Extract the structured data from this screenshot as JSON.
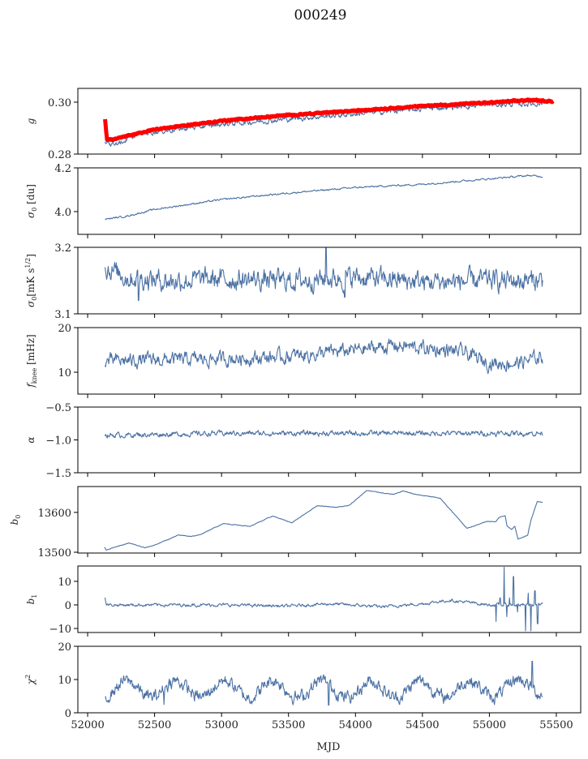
{
  "chart_data": {
    "type": "line",
    "title": "000249",
    "xlabel": "MJD",
    "xlim": [
      51927,
      55682
    ],
    "xticks": [
      52000,
      52500,
      53000,
      53500,
      54000,
      54500,
      55000,
      55500
    ],
    "xtick_labels": [
      "52000",
      "52500",
      "53000",
      "53500",
      "54000",
      "54500",
      "55000",
      "55500"
    ],
    "series_color": "#4c72a4",
    "model_color": "#ff0000",
    "grid": false,
    "panels": [
      {
        "id": "g",
        "ylabel": {
          "main": "g",
          "sub": "",
          "sup": "",
          "tail": ""
        },
        "ylim": [
          0.28,
          0.3053
        ],
        "yticks": [
          0.28,
          0.3
        ],
        "ytick_labels": [
          "0.28",
          "0.30"
        ],
        "series": [
          {
            "name": "gain",
            "x": [
              52130,
              52200,
              52400,
              53000,
              53500,
              54000,
              54500,
              55000,
              55400
            ],
            "y": [
              0.284,
              0.2835,
              0.288,
              0.2915,
              0.2935,
              0.2955,
              0.2975,
              0.299,
              0.2995
            ],
            "noise": 0.0008,
            "x_end": 55400
          },
          {
            "name": "gain model",
            "model": true,
            "x": [
              52130,
              52145,
              52200,
              52500,
              53000,
              53500,
              54000,
              54500,
              55000,
              55300,
              55480
            ],
            "y": [
              0.2935,
              0.2855,
              0.2857,
              0.2895,
              0.2928,
              0.295,
              0.2967,
              0.2985,
              0.2998,
              0.3008,
              0.3003
            ],
            "noise": 0.0002
          }
        ]
      },
      {
        "id": "sigma0-du",
        "ylabel": {
          "main": "σ",
          "sub": "0",
          "sup": "",
          "tail": " [du]"
        },
        "ylim": [
          3.896,
          4.2
        ],
        "yticks": [
          4.0,
          4.2
        ],
        "ytick_labels": [
          "4.0",
          "4.2"
        ],
        "series": [
          {
            "name": "sigma0 du",
            "x": [
              52130,
              52300,
              52500,
              53000,
              53500,
              54000,
              54500,
              55000,
              55300,
              55400
            ],
            "y": [
              3.965,
              3.98,
              4.01,
              4.055,
              4.085,
              4.11,
              4.125,
              4.15,
              4.165,
              4.16
            ],
            "noise": 0.003
          }
        ]
      },
      {
        "id": "sigma0-mk",
        "ylabel": {
          "main": "σ",
          "sub": "0",
          "sup": "1/2",
          "tail": "[mK s"
        },
        "ylim": [
          3.1,
          3.2
        ],
        "yticks": [
          3.1,
          3.2
        ],
        "ytick_labels": [
          "3.1",
          "3.2"
        ],
        "series": [
          {
            "name": "sigma0 mK",
            "x": [
              52130,
              52300,
              52600,
              53000,
              53500,
              54000,
              54500,
              55000,
              55400
            ],
            "y": [
              3.17,
              3.155,
              3.15,
              3.152,
              3.15,
              3.155,
              3.148,
              3.15,
              3.15
            ],
            "noise": 0.012,
            "spikes": [
              [
                53780,
                3.2
              ],
              [
                52380,
                3.12
              ],
              [
                53920,
                3.125
              ]
            ]
          }
        ]
      },
      {
        "id": "fknee",
        "ylabel": {
          "main": "f",
          "sub": "knee",
          "sup": "",
          "tail": " [mHz]"
        },
        "ylim": [
          5.1,
          20
        ],
        "yticks": [
          10,
          20
        ],
        "ytick_labels": [
          "10",
          "20"
        ],
        "series": [
          {
            "name": "fknee",
            "x": [
              52130,
              53000,
              53500,
              54000,
              54300,
              54800,
              55000,
              55200,
              55400
            ],
            "y": [
              12.5,
              13,
              13.5,
              15,
              16,
              14.5,
              12,
              12,
              13.5
            ],
            "noise": 1.2
          }
        ]
      },
      {
        "id": "alpha",
        "ylabel": {
          "main": "α",
          "sub": "",
          "sup": "",
          "tail": ""
        },
        "ylim": [
          -1.5,
          -0.5
        ],
        "yticks": [
          -1.5,
          -1.0,
          -0.5
        ],
        "ytick_labels": [
          "−1.5",
          "−1.0",
          "−0.5"
        ],
        "series": [
          {
            "name": "alpha",
            "x": [
              52130,
              53000,
              54000,
              55000,
              55400
            ],
            "y": [
              -0.93,
              -0.9,
              -0.9,
              -0.9,
              -0.9
            ],
            "noise": 0.03
          }
        ]
      },
      {
        "id": "b0",
        "ylabel": {
          "main": "b",
          "sub": "0",
          "sup": "",
          "tail": ""
        },
        "ylim": [
          13498,
          13665
        ],
        "yticks": [
          13500,
          13600
        ],
        "ytick_labels": [
          "13500",
          "13600"
        ],
        "series": [
          {
            "name": "b0",
            "x": [
              52126,
              52138,
              52310,
              52429,
              52500,
              52679,
              52774,
              52833,
              53012,
              53214,
              53381,
              53524,
              53714,
              53857,
              53952,
              54083,
              54286,
              54357,
              54452,
              54631,
              54833,
              54976,
              55048,
              55071,
              55119,
              55131,
              55167,
              55190,
              55214,
              55286,
              55310,
              55357,
              55400
            ],
            "y": [
              13513,
              13506,
              13523,
              13511,
              13518,
              13543,
              13540,
              13543,
              13572,
              13565,
              13591,
              13574,
              13617,
              13613,
              13617,
              13655,
              13645,
              13654,
              13645,
              13636,
              13560,
              13577,
              13577,
              13587,
              13592,
              13567,
              13557,
              13565,
              13533,
              13543,
              13580,
              13627,
              13626
            ],
            "noise": 0.6
          }
        ]
      },
      {
        "id": "b1",
        "ylabel": {
          "main": "b",
          "sub": "1",
          "sup": "",
          "tail": ""
        },
        "ylim": [
          -11.7,
          16.5
        ],
        "yticks": [
          -10,
          0,
          10
        ],
        "ytick_labels": [
          "−10",
          "0",
          "10"
        ],
        "series": [
          {
            "name": "b1",
            "x": [
              52130,
              52140,
              53000,
              53500,
              53800,
              54200,
              54500,
              54700,
              55000,
              55400
            ],
            "y": [
              3.5,
              0,
              0,
              -0.5,
              0.5,
              -0.8,
              0.5,
              2,
              0,
              0
            ],
            "noise": 0.5,
            "spikes": [
              [
                55050,
                -7
              ],
              [
                55080,
                3
              ],
              [
                55110,
                16
              ],
              [
                55130,
                -5
              ],
              [
                55150,
                3
              ],
              [
                55180,
                12
              ],
              [
                55210,
                -3
              ],
              [
                55270,
                -11
              ],
              [
                55290,
                5
              ],
              [
                55310,
                -11
              ],
              [
                55340,
                6
              ],
              [
                55360,
                -8
              ]
            ]
          }
        ]
      },
      {
        "id": "chi2",
        "ylabel": {
          "main": "χ",
          "sub": "",
          "sup": "2",
          "tail": ""
        },
        "ylim": [
          0,
          20
        ],
        "yticks": [
          0,
          10,
          20
        ],
        "ytick_labels": [
          "0",
          "10",
          "20"
        ],
        "series": [
          {
            "name": "chi2",
            "x": [
              52130,
              53000,
              54000,
              55000,
              55400
            ],
            "y": [
              7,
              7.2,
              7,
              7.2,
              8
            ],
            "noise": 1.5,
            "annual_amplitude": 2.5,
            "spikes": [
              [
                52570,
                2.5
              ],
              [
                53800,
                2.3
              ],
              [
                55320,
                15.5
              ]
            ]
          }
        ]
      }
    ]
  }
}
